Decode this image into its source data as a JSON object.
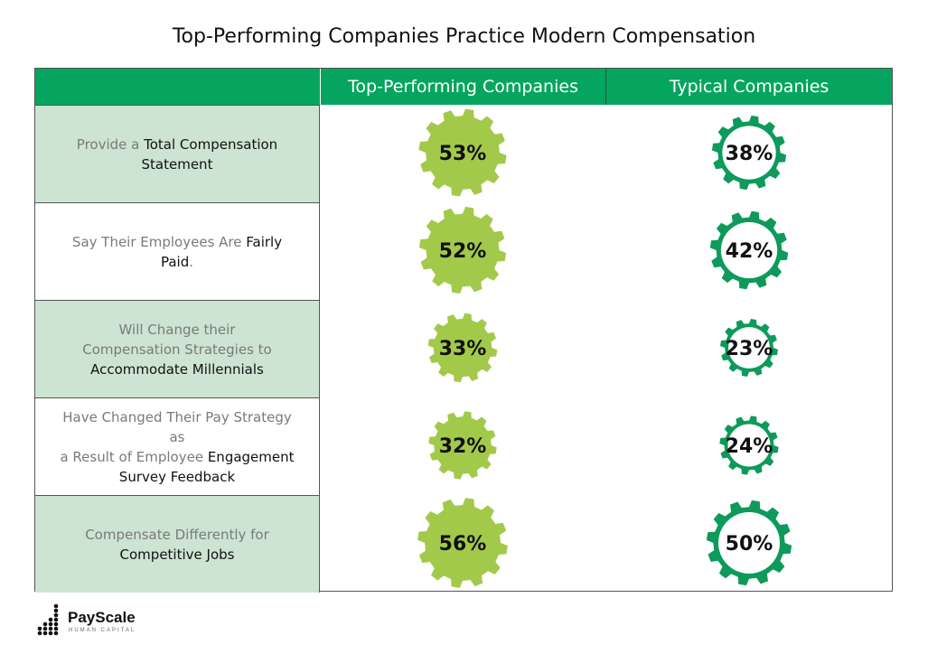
{
  "title": "Top-Performing Companies Practice Modern Compensation",
  "colors": {
    "header_bg": "#06a55f",
    "shaded_row": "#cde4d2",
    "top_gear": "#a3c94b",
    "typical_gear": "#0d9a5a"
  },
  "header": {
    "col0": "",
    "col1": "Top-Performing Companies",
    "col2": "Typical Companies"
  },
  "rows": [
    {
      "shaded": true,
      "lines": [
        [
          {
            "t": "Provide a ",
            "b": false
          },
          {
            "t": "Total Compensation",
            "b": true
          }
        ],
        [
          {
            "t": "Statement",
            "b": true
          }
        ]
      ]
    },
    {
      "shaded": false,
      "lines": [
        [
          {
            "t": "Say Their Employees Are ",
            "b": false
          },
          {
            "t": "Fairly",
            "b": true
          }
        ],
        [
          {
            "t": "Paid",
            "b": true
          },
          {
            "t": ".",
            "b": false
          }
        ]
      ]
    },
    {
      "shaded": true,
      "lines": [
        [
          {
            "t": "Will Change their",
            "b": false
          }
        ],
        [
          {
            "t": "Compensation Strategies to",
            "b": false
          }
        ],
        [
          {
            "t": "Accommodate Millennials",
            "b": true
          }
        ]
      ]
    },
    {
      "shaded": false,
      "lines": [
        [
          {
            "t": "Have Changed Their Pay Strategy as",
            "b": false
          }
        ],
        [
          {
            "t": "a Result of Employee ",
            "b": false
          },
          {
            "t": "Engagement",
            "b": true
          }
        ],
        [
          {
            "t": "Survey Feedback",
            "b": true
          }
        ]
      ]
    },
    {
      "shaded": true,
      "lines": [
        [
          {
            "t": "Compensate Differently for",
            "b": false
          }
        ],
        [
          {
            "t": "Competitive Jobs",
            "b": true
          }
        ]
      ]
    }
  ],
  "chart_data": {
    "type": "table",
    "categories": [
      "Provide a Total Compensation Statement",
      "Say Their Employees Are Fairly Paid.",
      "Will Change their Compensation Strategies to Accommodate Millennials",
      "Have Changed Their Pay Strategy as a Result of Employee Engagement Survey Feedback",
      "Compensate Differently for Competitive Jobs"
    ],
    "series": [
      {
        "name": "Top-Performing Companies",
        "values": [
          53,
          52,
          33,
          32,
          56
        ]
      },
      {
        "name": "Typical Companies",
        "values": [
          38,
          42,
          23,
          24,
          50
        ]
      }
    ],
    "labels": {
      "Top-Performing Companies": [
        "53%",
        "52%",
        "33%",
        "32%",
        "56%"
      ],
      "Typical Companies": [
        "38%",
        "42%",
        "23%",
        "24%",
        "50%"
      ]
    }
  },
  "logo": {
    "name": "PayScale",
    "subtitle": "HUMAN CAPITAL"
  }
}
